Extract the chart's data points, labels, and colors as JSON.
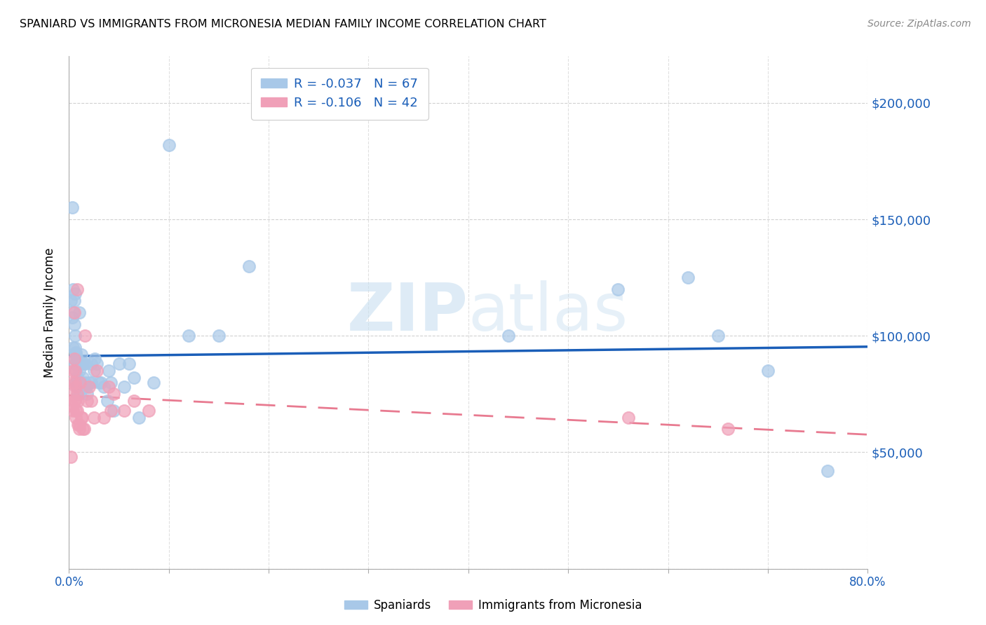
{
  "title": "SPANIARD VS IMMIGRANTS FROM MICRONESIA MEDIAN FAMILY INCOME CORRELATION CHART",
  "source": "Source: ZipAtlas.com",
  "ylabel": "Median Family Income",
  "xlim": [
    0,
    0.8
  ],
  "ylim": [
    0,
    220000
  ],
  "yticks": [
    0,
    50000,
    100000,
    150000,
    200000
  ],
  "xticks": [
    0.0,
    0.1,
    0.2,
    0.3,
    0.4,
    0.5,
    0.6,
    0.7,
    0.8
  ],
  "spaniards_color": "#a8c8e8",
  "micronesia_color": "#f0a0b8",
  "trend_blue": "#1a5eb8",
  "trend_pink": "#e87a90",
  "legend_r1": "R = -0.037",
  "legend_n1": "N = 67",
  "legend_r2": "R = -0.106",
  "legend_n2": "N = 42",
  "label1": "Spaniards",
  "label2": "Immigrants from Micronesia",
  "watermark_zip": "ZIP",
  "watermark_atlas": "atlas",
  "spaniards_x": [
    0.002,
    0.003,
    0.003,
    0.004,
    0.004,
    0.004,
    0.005,
    0.005,
    0.005,
    0.006,
    0.006,
    0.006,
    0.006,
    0.007,
    0.007,
    0.007,
    0.007,
    0.008,
    0.008,
    0.008,
    0.009,
    0.009,
    0.009,
    0.01,
    0.01,
    0.011,
    0.011,
    0.012,
    0.012,
    0.013,
    0.013,
    0.014,
    0.015,
    0.015,
    0.016,
    0.016,
    0.017,
    0.018,
    0.02,
    0.022,
    0.022,
    0.025,
    0.026,
    0.028,
    0.03,
    0.032,
    0.035,
    0.038,
    0.04,
    0.042,
    0.045,
    0.05,
    0.055,
    0.06,
    0.065,
    0.07,
    0.085,
    0.1,
    0.12,
    0.15,
    0.18,
    0.44,
    0.55,
    0.62,
    0.65,
    0.7,
    0.76
  ],
  "spaniards_y": [
    115000,
    108000,
    155000,
    120000,
    95000,
    110000,
    115000,
    105000,
    90000,
    100000,
    95000,
    88000,
    118000,
    92000,
    85000,
    80000,
    93000,
    90000,
    82000,
    78000,
    88000,
    80000,
    75000,
    85000,
    110000,
    88000,
    75000,
    92000,
    80000,
    88000,
    78000,
    82000,
    88000,
    78000,
    88000,
    80000,
    78000,
    75000,
    80000,
    88000,
    80000,
    85000,
    90000,
    88000,
    80000,
    80000,
    78000,
    72000,
    85000,
    80000,
    68000,
    88000,
    78000,
    88000,
    82000,
    65000,
    80000,
    182000,
    100000,
    100000,
    130000,
    100000,
    120000,
    125000,
    100000,
    85000,
    42000
  ],
  "micronesia_x": [
    0.002,
    0.003,
    0.003,
    0.004,
    0.004,
    0.004,
    0.005,
    0.005,
    0.005,
    0.006,
    0.006,
    0.006,
    0.007,
    0.007,
    0.007,
    0.008,
    0.008,
    0.008,
    0.009,
    0.009,
    0.01,
    0.01,
    0.011,
    0.012,
    0.013,
    0.014,
    0.015,
    0.016,
    0.018,
    0.02,
    0.022,
    0.025,
    0.028,
    0.035,
    0.04,
    0.042,
    0.045,
    0.055,
    0.065,
    0.08,
    0.56,
    0.66
  ],
  "micronesia_y": [
    48000,
    80000,
    70000,
    75000,
    85000,
    68000,
    110000,
    90000,
    72000,
    85000,
    80000,
    72000,
    65000,
    78000,
    68000,
    120000,
    75000,
    68000,
    72000,
    62000,
    62000,
    60000,
    80000,
    65000,
    65000,
    60000,
    60000,
    100000,
    72000,
    78000,
    72000,
    65000,
    85000,
    65000,
    78000,
    68000,
    75000,
    68000,
    72000,
    68000,
    65000,
    60000
  ]
}
